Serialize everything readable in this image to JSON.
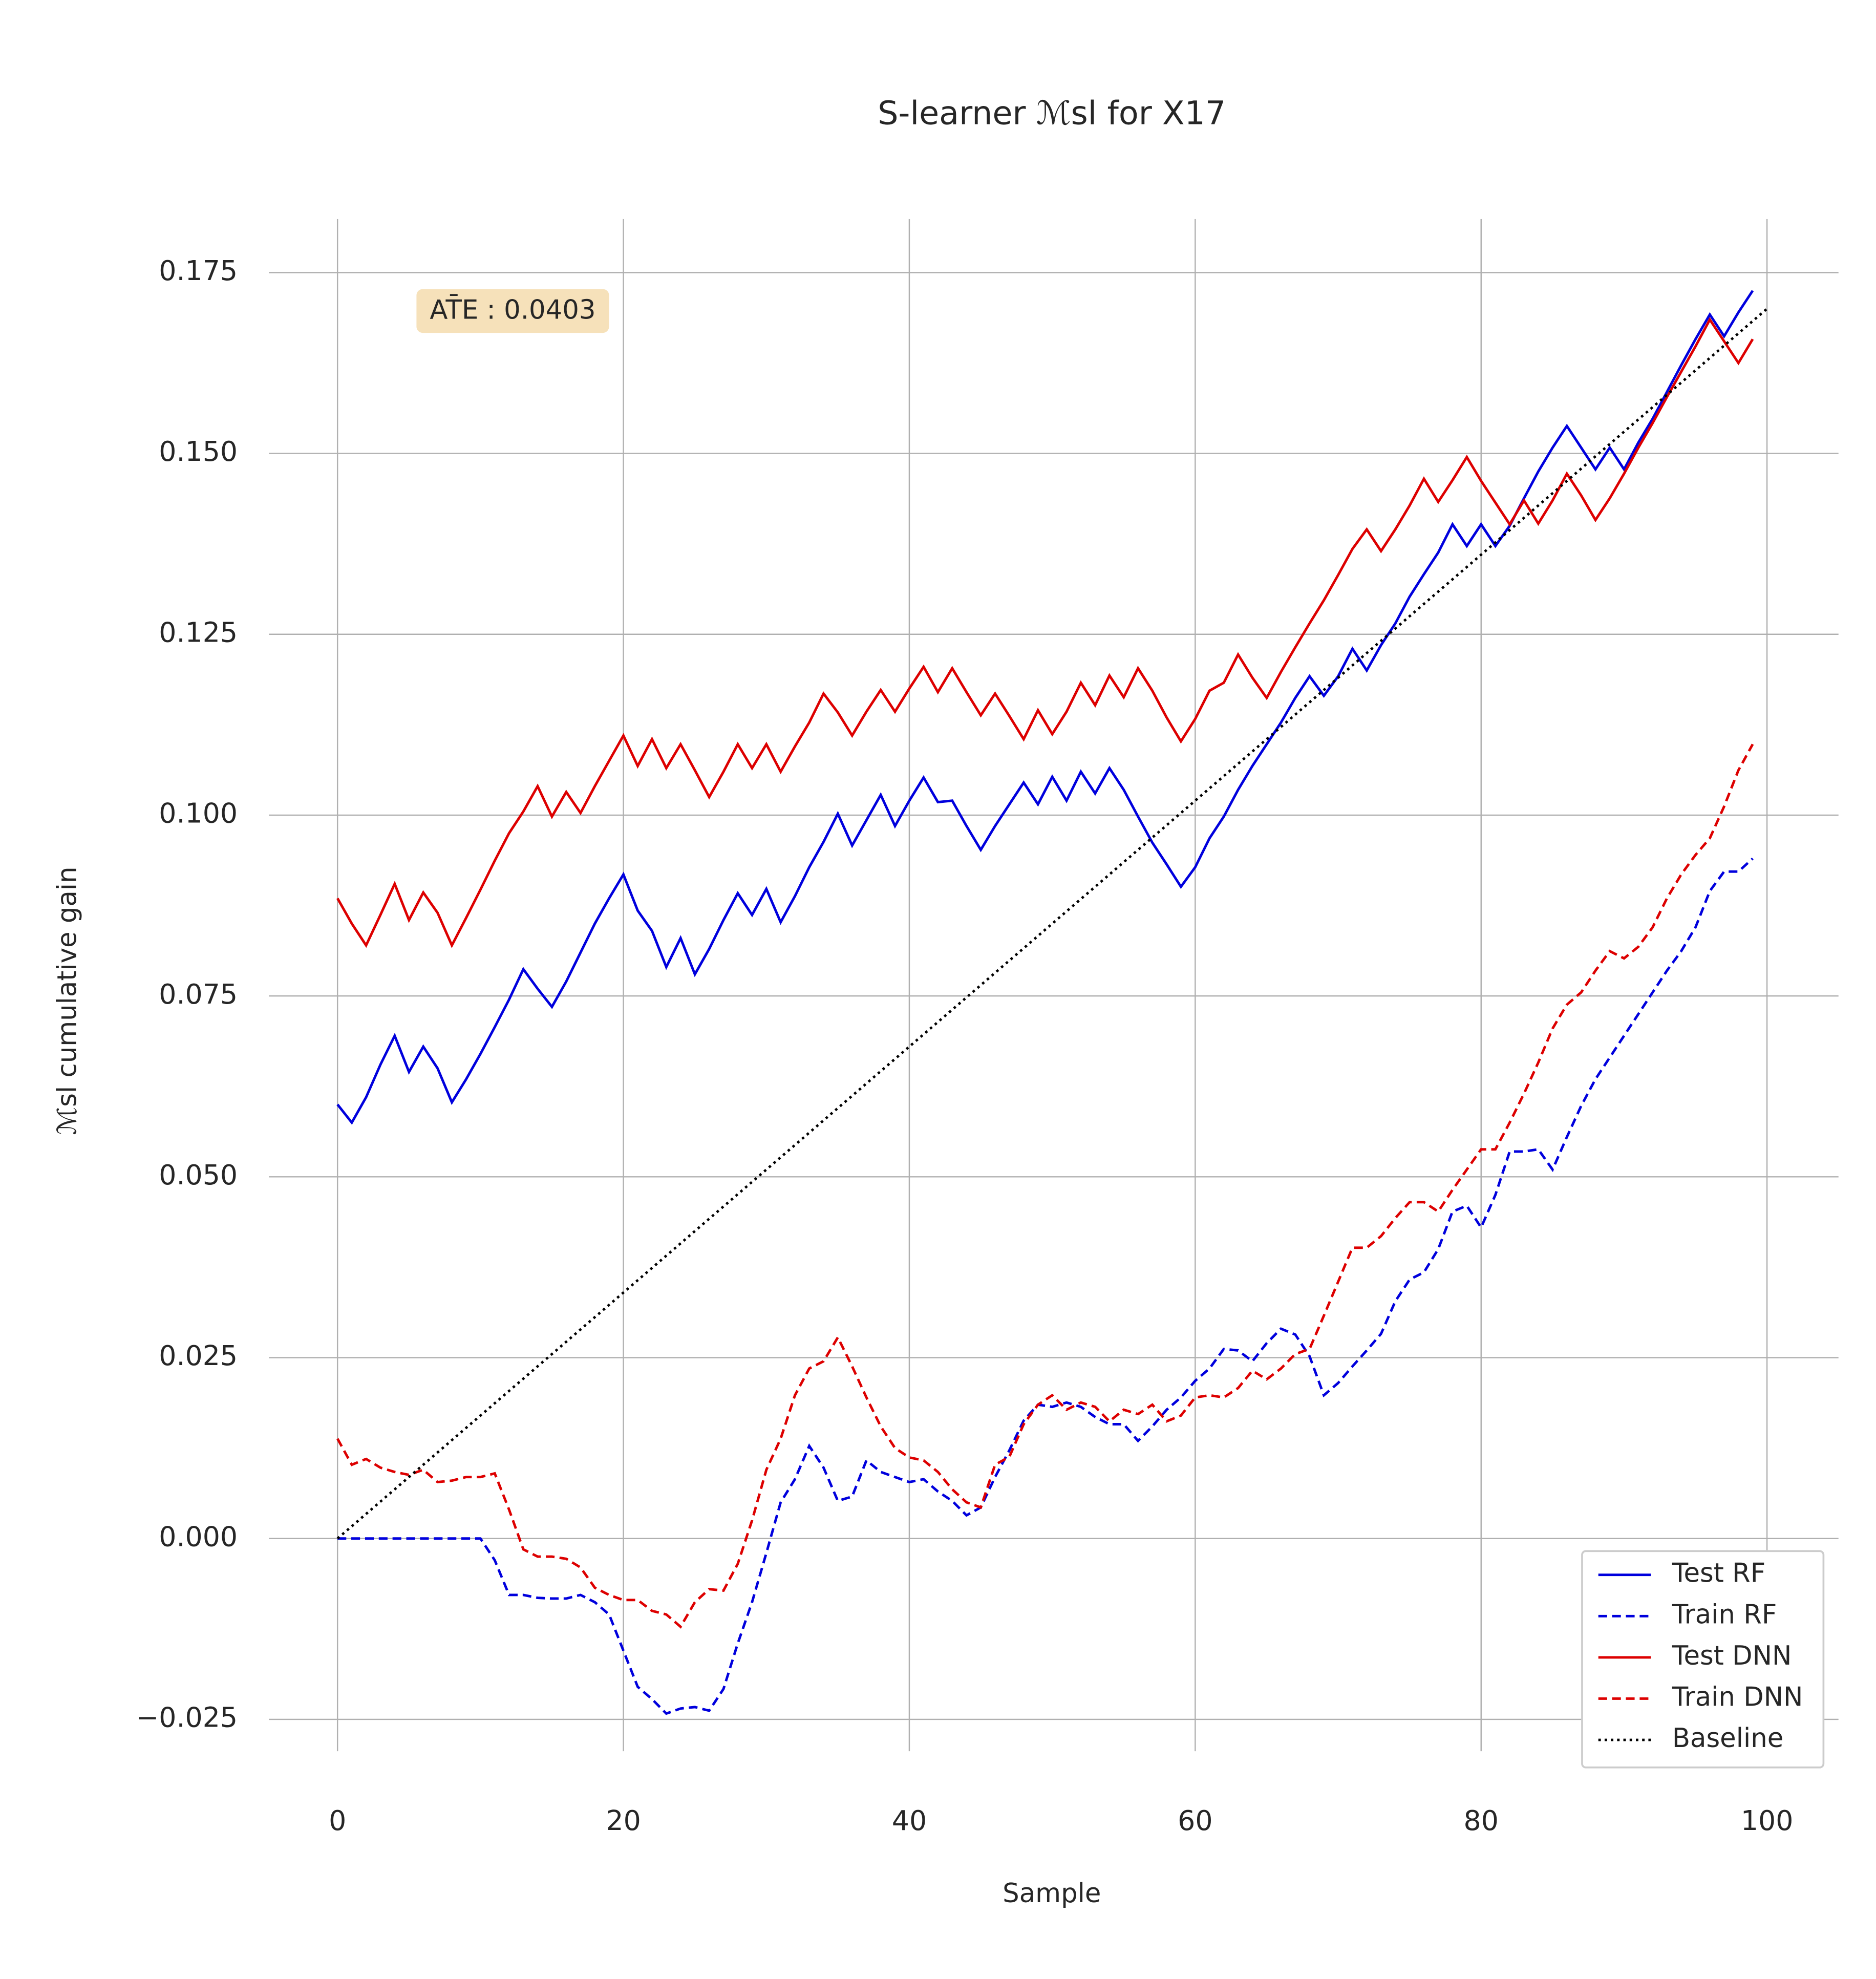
{
  "chart_data": {
    "type": "line",
    "title": "S-learner ℳsl for X17",
    "xlabel": "Sample",
    "ylabel": "ℳsl    cumulative gain",
    "annotation": "AT̄E : 0.0403",
    "x": [
      0,
      1,
      2,
      3,
      4,
      5,
      6,
      7,
      8,
      9,
      10,
      11,
      12,
      13,
      14,
      15,
      16,
      17,
      18,
      19,
      20,
      21,
      22,
      23,
      24,
      25,
      26,
      27,
      28,
      29,
      30,
      31,
      32,
      33,
      34,
      35,
      36,
      37,
      38,
      39,
      40,
      41,
      42,
      43,
      44,
      45,
      46,
      47,
      48,
      49,
      50,
      51,
      52,
      53,
      54,
      55,
      56,
      57,
      58,
      59,
      60,
      61,
      62,
      63,
      64,
      65,
      66,
      67,
      68,
      69,
      70,
      71,
      72,
      73,
      74,
      75,
      76,
      77,
      78,
      79,
      80,
      81,
      82,
      83,
      84,
      85,
      86,
      87,
      88,
      89,
      90,
      91,
      92,
      93,
      94,
      95,
      96,
      97,
      98,
      99
    ],
    "series": [
      {
        "name": "Test RF",
        "color": "#0000dd",
        "linestyle": "solid",
        "values": [
          0.06,
          0.0575,
          0.061,
          0.0655,
          0.0695,
          0.0645,
          0.068,
          0.065,
          0.0603,
          0.0635,
          0.067,
          0.0707,
          0.0745,
          0.0787,
          0.076,
          0.0735,
          0.077,
          0.081,
          0.085,
          0.0885,
          0.0918,
          0.0868,
          0.084,
          0.079,
          0.083,
          0.078,
          0.0815,
          0.0855,
          0.0892,
          0.0862,
          0.0898,
          0.0852,
          0.0888,
          0.0928,
          0.0963,
          0.1002,
          0.0958,
          0.0993,
          0.1028,
          0.0985,
          0.102,
          0.1052,
          0.1018,
          0.102,
          0.0985,
          0.0952,
          0.0985,
          0.1015,
          0.1045,
          0.1015,
          0.1053,
          0.102,
          0.106,
          0.103,
          0.1065,
          0.1035,
          0.0998,
          0.0962,
          0.0932,
          0.0901,
          0.0928,
          0.0968,
          0.0998,
          0.1035,
          0.1068,
          0.1098,
          0.1128,
          0.1162,
          0.1192,
          0.1165,
          0.1192,
          0.123,
          0.12,
          0.1235,
          0.1265,
          0.1302,
          0.1333,
          0.1363,
          0.1402,
          0.1372,
          0.1402,
          0.1372,
          0.14,
          0.1438,
          0.1475,
          0.1508,
          0.1538,
          0.1508,
          0.1478,
          0.1508,
          0.1478,
          0.1515,
          0.1548,
          0.1585,
          0.1622,
          0.1658,
          0.1692,
          0.1662,
          0.1695,
          0.1725
        ]
      },
      {
        "name": "Train RF",
        "color": "#0000dd",
        "linestyle": "dashed",
        "values": [
          0,
          0,
          0,
          0,
          0,
          0,
          0,
          0,
          0,
          0,
          0,
          -0.003,
          -0.0078,
          -0.0078,
          -0.0082,
          -0.0083,
          -0.0083,
          -0.0078,
          -0.0088,
          -0.0105,
          -0.0155,
          -0.0205,
          -0.0222,
          -0.0242,
          -0.0235,
          -0.0233,
          -0.0238,
          -0.0208,
          -0.0145,
          -0.0088,
          -0.002,
          0.005,
          0.0082,
          0.0128,
          0.0098,
          0.0052,
          0.0058,
          0.0108,
          0.0092,
          0.0085,
          0.0078,
          0.0082,
          0.0065,
          0.0052,
          0.0032,
          0.0043,
          0.0085,
          0.0122,
          0.0163,
          0.0185,
          0.0182,
          0.0188,
          0.0182,
          0.0168,
          0.0158,
          0.0158,
          0.0135,
          0.0155,
          0.0178,
          0.0195,
          0.0218,
          0.0235,
          0.0262,
          0.026,
          0.0245,
          0.027,
          0.029,
          0.0282,
          0.0252,
          0.0198,
          0.0215,
          0.0238,
          0.026,
          0.0283,
          0.0328,
          0.0358,
          0.0368,
          0.04,
          0.0452,
          0.046,
          0.043,
          0.0475,
          0.0535,
          0.0535,
          0.0538,
          0.051,
          0.0555,
          0.0598,
          0.0635,
          0.0665,
          0.0695,
          0.0725,
          0.0755,
          0.0785,
          0.0812,
          0.0845,
          0.0895,
          0.0922,
          0.0922,
          0.094
        ]
      },
      {
        "name": "Test DNN",
        "color": "#dd0000",
        "linestyle": "solid",
        "values": [
          0.0885,
          0.085,
          0.082,
          0.0862,
          0.0905,
          0.0855,
          0.0893,
          0.0865,
          0.082,
          0.0858,
          0.0897,
          0.0937,
          0.0975,
          0.1005,
          0.104,
          0.0998,
          0.1032,
          0.1003,
          0.104,
          0.1075,
          0.111,
          0.1068,
          0.1105,
          0.1065,
          0.1098,
          0.1062,
          0.1025,
          0.106,
          0.1098,
          0.1065,
          0.1098,
          0.106,
          0.1095,
          0.1128,
          0.1168,
          0.1142,
          0.111,
          0.1143,
          0.1173,
          0.1143,
          0.1175,
          0.1205,
          0.117,
          0.1203,
          0.117,
          0.1138,
          0.1168,
          0.1137,
          0.1105,
          0.1145,
          0.1112,
          0.1143,
          0.1183,
          0.1152,
          0.1193,
          0.1163,
          0.1203,
          0.1172,
          0.1135,
          0.1102,
          0.1133,
          0.1172,
          0.1183,
          0.1222,
          0.119,
          0.1162,
          0.1198,
          0.1232,
          0.1265,
          0.1297,
          0.1332,
          0.1368,
          0.1395,
          0.1365,
          0.1395,
          0.1428,
          0.1465,
          0.1433,
          0.1463,
          0.1495,
          0.1462,
          0.1432,
          0.1402,
          0.1435,
          0.1403,
          0.1435,
          0.1472,
          0.1442,
          0.1408,
          0.1438,
          0.1472,
          0.1508,
          0.1542,
          0.1578,
          0.1613,
          0.1648,
          0.1685,
          0.1655,
          0.1625,
          0.1658
        ]
      },
      {
        "name": "Train DNN",
        "color": "#dd0000",
        "linestyle": "dashed",
        "values": [
          0.0138,
          0.0102,
          0.011,
          0.0098,
          0.0092,
          0.0088,
          0.0095,
          0.0078,
          0.008,
          0.0085,
          0.0085,
          0.009,
          0.004,
          -0.0015,
          -0.0025,
          -0.0025,
          -0.0028,
          -0.004,
          -0.0068,
          -0.0078,
          -0.0085,
          -0.0085,
          -0.01,
          -0.0105,
          -0.0122,
          -0.0088,
          -0.007,
          -0.0072,
          -0.0035,
          0.0025,
          0.0095,
          0.0138,
          0.0198,
          0.0235,
          0.0245,
          0.0278,
          0.0238,
          0.0195,
          0.0155,
          0.0125,
          0.0112,
          0.0108,
          0.0092,
          0.0068,
          0.005,
          0.0043,
          0.0102,
          0.0113,
          0.0158,
          0.0185,
          0.0198,
          0.0178,
          0.0188,
          0.0182,
          0.0162,
          0.0178,
          0.0172,
          0.0185,
          0.0162,
          0.017,
          0.0195,
          0.0198,
          0.0195,
          0.0208,
          0.0232,
          0.022,
          0.0235,
          0.0255,
          0.0262,
          0.0308,
          0.0355,
          0.0402,
          0.0402,
          0.0418,
          0.0443,
          0.0465,
          0.0465,
          0.0452,
          0.0482,
          0.051,
          0.0538,
          0.0538,
          0.0575,
          0.0615,
          0.0658,
          0.0705,
          0.0738,
          0.0755,
          0.0785,
          0.0812,
          0.0802,
          0.0818,
          0.0845,
          0.0885,
          0.0918,
          0.0945,
          0.0968,
          0.1012,
          0.1062,
          0.1098
        ]
      },
      {
        "name": "Baseline",
        "color": "#000000",
        "linestyle": "dotted",
        "x": [
          0,
          100
        ],
        "values": [
          0,
          0.17
        ]
      }
    ],
    "xlim": [
      -4.8,
      105
    ],
    "ylim": [
      -0.0294,
      0.1824
    ],
    "xticks": [
      0,
      20,
      40,
      60,
      80,
      100
    ],
    "yticks": [
      {
        "value": -0.025,
        "label": "−0.025"
      },
      {
        "value": 0,
        "label": "0.000"
      },
      {
        "value": 0.025,
        "label": "0.025"
      },
      {
        "value": 0.05,
        "label": "0.050"
      },
      {
        "value": 0.075,
        "label": "0.075"
      },
      {
        "value": 0.1,
        "label": "0.100"
      },
      {
        "value": 0.125,
        "label": "0.125"
      },
      {
        "value": 0.15,
        "label": "0.150"
      },
      {
        "value": 0.175,
        "label": "0.175"
      }
    ],
    "grid": true,
    "legend": "lower right"
  }
}
